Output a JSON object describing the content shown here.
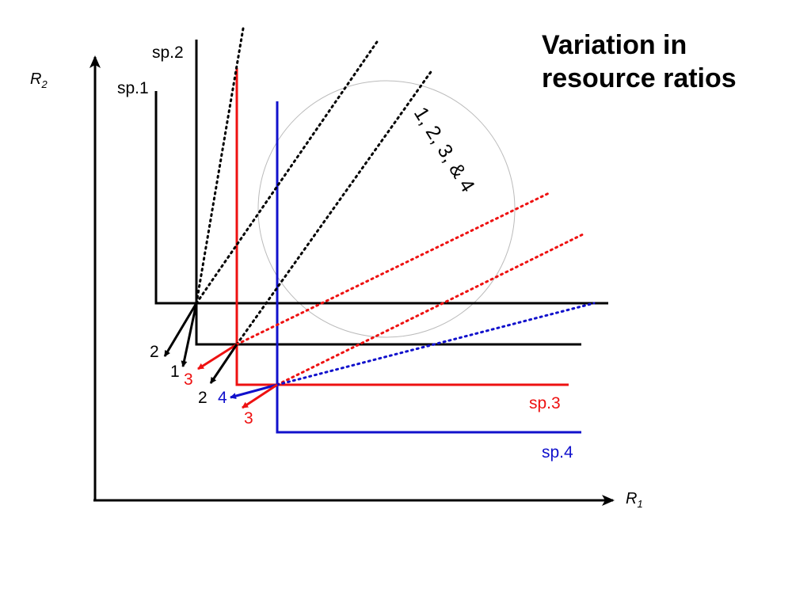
{
  "title": {
    "line1": "Variation in",
    "line2": "resource ratios"
  },
  "axes": {
    "x_label_letter": "R",
    "x_label_sub": "1",
    "y_label_letter": "R",
    "y_label_sub": "2"
  },
  "species": {
    "sp1": "sp.1",
    "sp2": "sp.2",
    "sp3": "sp.3",
    "sp4": "sp.4"
  },
  "supply_region_label": "1, 2, 3, & 4",
  "impact_labels": {
    "a": "2",
    "b": "1",
    "c": "3",
    "d": "2",
    "e": "4",
    "f": "3"
  },
  "colors": {
    "black": "#000000",
    "sp3": "#ee1111",
    "sp4": "#1111cc",
    "circle": "#bbbbbb"
  }
}
